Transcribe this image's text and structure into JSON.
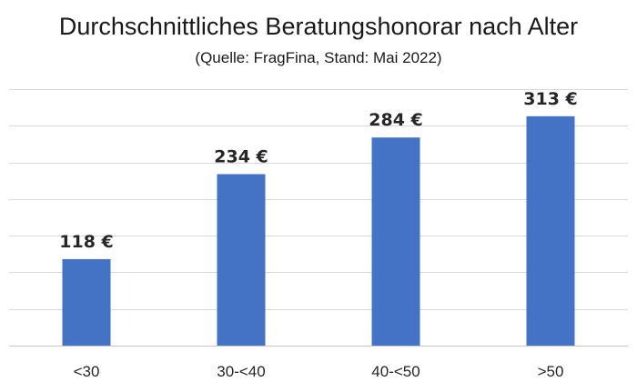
{
  "chart_data": {
    "type": "bar",
    "title": "Durchschnittliches Beratungshonorar nach Alter",
    "subtitle": "(Quelle: FragFina, Stand: Mai 2022)",
    "xlabel": "",
    "ylabel": "",
    "categories": [
      "<30",
      "30-<40",
      "40-<50",
      ">50"
    ],
    "values": [
      118,
      234,
      284,
      313
    ],
    "data_labels": [
      "118 €",
      "234 €",
      "284 €",
      "313 €"
    ],
    "ylim": [
      0,
      350
    ],
    "ytick_step": 50,
    "grid": true,
    "legend": "none",
    "colors": {
      "bar": "#4472c4",
      "grid": "#d9d9d9"
    }
  }
}
